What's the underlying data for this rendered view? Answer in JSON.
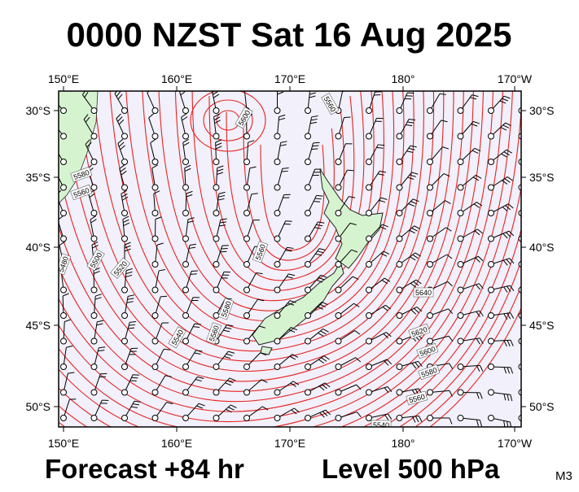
{
  "header": {
    "title": "0000 NZST Sat 16 Aug 2025"
  },
  "map": {
    "top_labels": [
      "150°E",
      "160°E",
      "170°E",
      "180°",
      "170°W"
    ],
    "bottom_labels": [
      "150°E",
      "160°E",
      "170°E",
      "180°",
      "170°W"
    ],
    "left_labels": [
      "30°S",
      "35°S",
      "40°S",
      "45°S",
      "50°S"
    ],
    "right_labels": [
      "30°S",
      "35°S",
      "40°S",
      "45°S",
      "50°S"
    ],
    "contour_labels": [
      "5600",
      "5560",
      "5580",
      "5560",
      "5560",
      "5480",
      "5500",
      "5520",
      "5540",
      "5560",
      "5580",
      "5640",
      "5620",
      "5600",
      "5580",
      "5560",
      "5540"
    ]
  },
  "footer": {
    "forecast": "Forecast +84 hr",
    "level": "Level 500 hPa",
    "code": "M3"
  }
}
